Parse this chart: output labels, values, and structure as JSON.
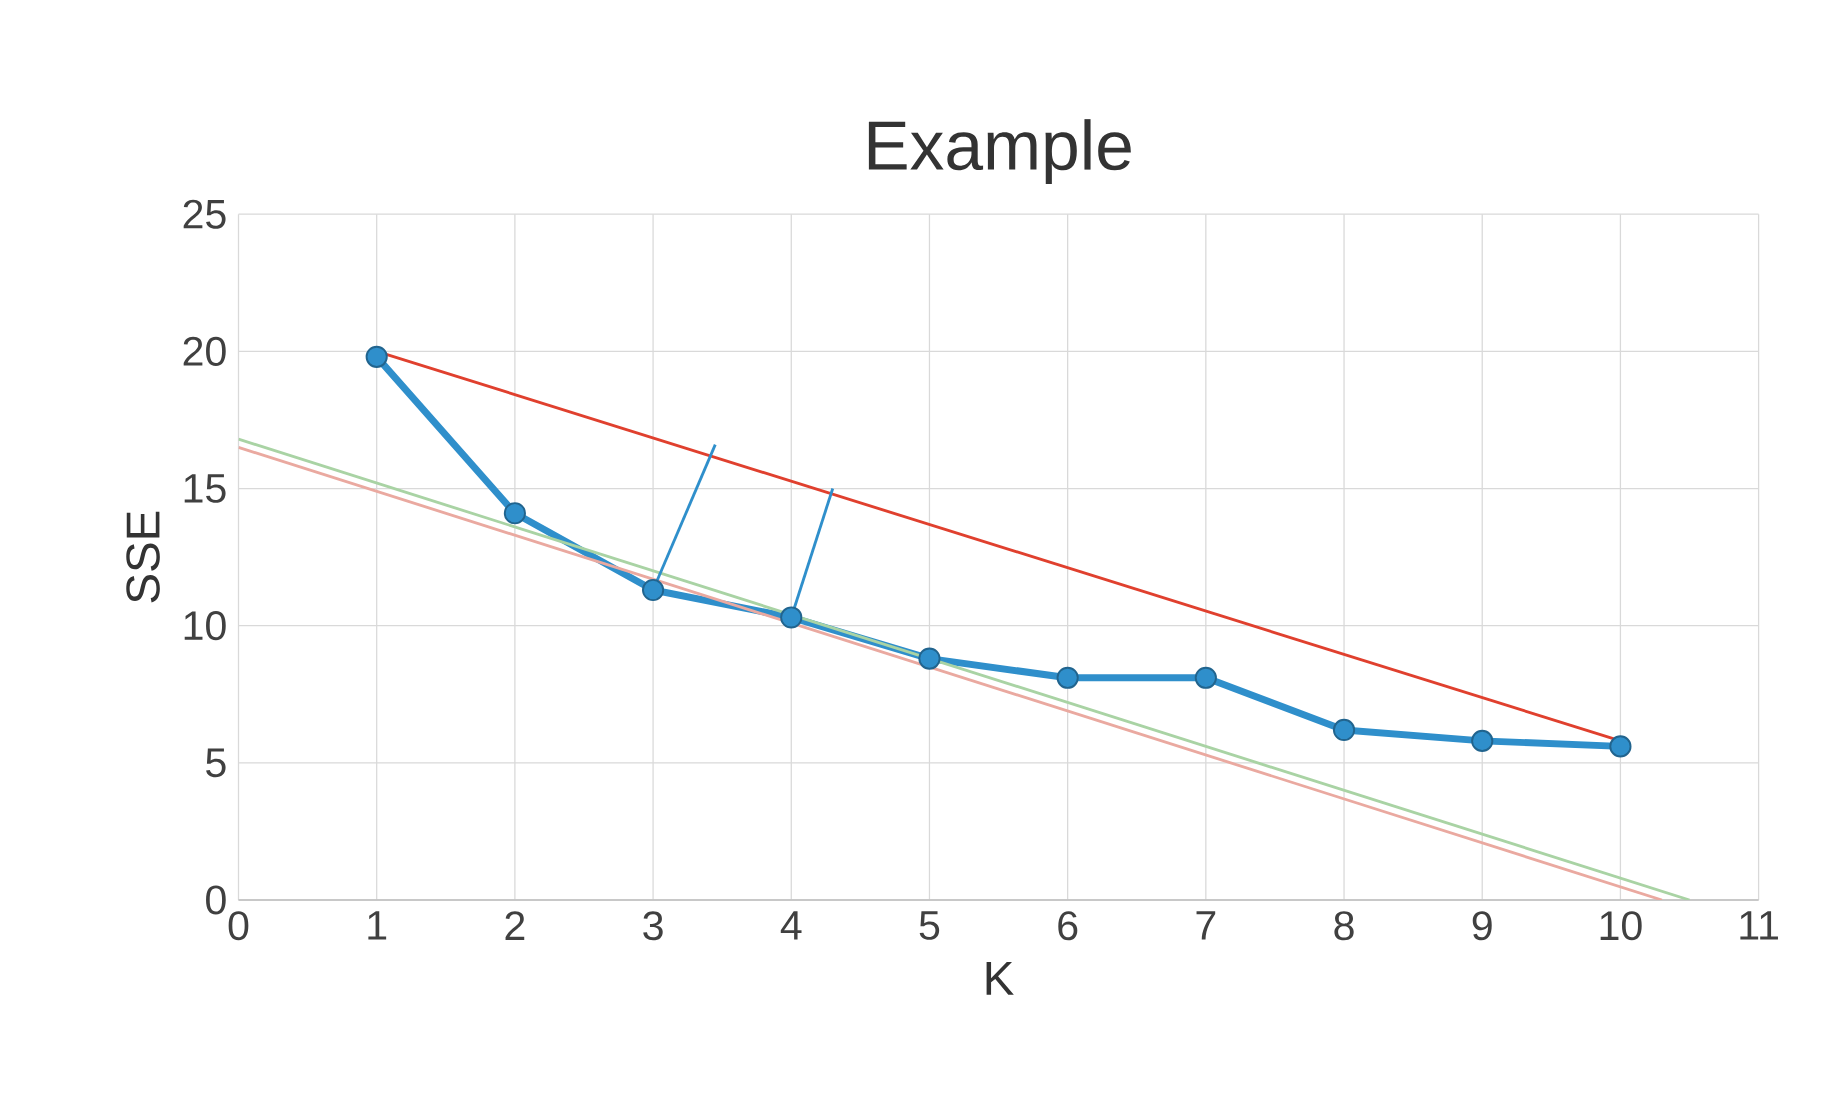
{
  "chart_data": {
    "type": "line",
    "title": "Example",
    "xlabel": "K",
    "ylabel": "SSE",
    "xlim": [
      0,
      11
    ],
    "xticks": [
      0,
      1,
      2,
      3,
      4,
      5,
      6,
      7,
      8,
      9,
      10,
      11
    ],
    "ylim": [
      0,
      25
    ],
    "yticks": [
      0,
      5,
      10,
      15,
      20,
      25
    ],
    "grid": true,
    "series": [
      {
        "color": "#2f8fcb",
        "marker": "circle",
        "x": [
          1,
          2,
          3,
          4,
          5,
          6,
          7,
          8,
          9,
          10
        ],
        "values": [
          19.8,
          14.1,
          11.3,
          10.3,
          8.8,
          8.1,
          8.1,
          6.2,
          5.8,
          5.6
        ]
      },
      {
        "color": "#e0402e",
        "marker": "none",
        "x": [
          1,
          10
        ],
        "values": [
          20,
          5.8
        ]
      },
      {
        "color": "#a9d3a4",
        "marker": "none",
        "x": [
          0,
          10.5
        ],
        "values": [
          16.8,
          0
        ]
      },
      {
        "color": "#eaa9a0",
        "marker": "none",
        "x": [
          0,
          10.3
        ],
        "values": [
          16.5,
          0
        ]
      },
      {
        "color": "#2f8fcb",
        "marker": "none",
        "x": [
          3,
          3.45
        ],
        "values": [
          11.3,
          16.6
        ]
      },
      {
        "color": "#2f8fcb",
        "marker": "none",
        "x": [
          4,
          4.3
        ],
        "values": [
          10.3,
          15.0
        ]
      }
    ]
  }
}
